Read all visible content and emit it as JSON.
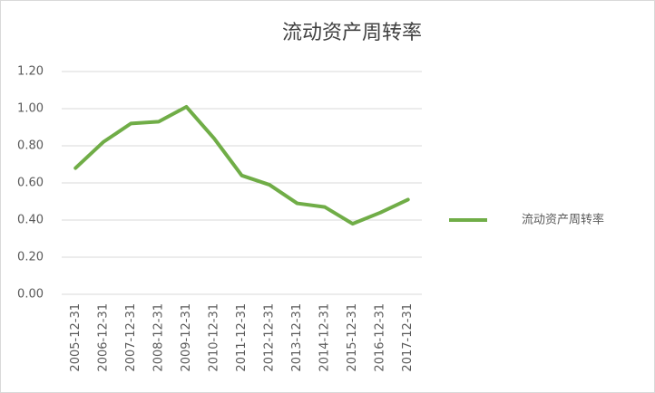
{
  "chart_data": {
    "type": "line",
    "title": "流动资产周转率",
    "categories": [
      "2005-12-31",
      "2006-12-31",
      "2007-12-31",
      "2008-12-31",
      "2009-12-31",
      "2010-12-31",
      "2011-12-31",
      "2012-12-31",
      "2013-12-31",
      "2014-12-31",
      "2015-12-31",
      "2016-12-31",
      "2017-12-31"
    ],
    "series": [
      {
        "name": "流动资产周转率",
        "color": "#70ad47",
        "values": [
          0.68,
          0.82,
          0.92,
          0.93,
          1.01,
          0.84,
          0.64,
          0.59,
          0.49,
          0.47,
          0.38,
          0.44,
          0.51
        ]
      }
    ],
    "ylim": [
      0,
      1.2
    ],
    "yticks": [
      {
        "value": 0,
        "label": "0.00"
      },
      {
        "value": 0.2,
        "label": "0.20"
      },
      {
        "value": 0.4,
        "label": "0.40"
      },
      {
        "value": 0.6,
        "label": "0.60"
      },
      {
        "value": 0.8,
        "label": "0.80"
      },
      {
        "value": 1,
        "label": "1.00"
      },
      {
        "value": 1.2,
        "label": "1.20"
      }
    ],
    "grid": true,
    "legend": "right"
  }
}
